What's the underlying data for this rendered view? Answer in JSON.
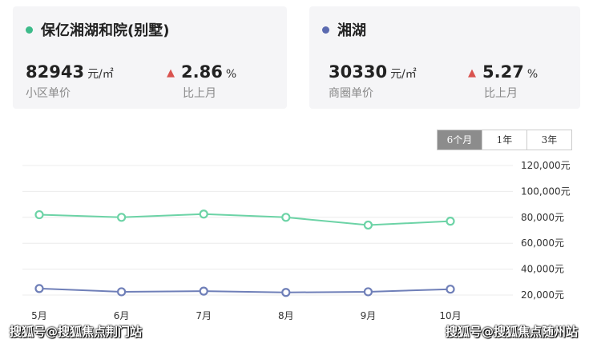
{
  "cards": [
    {
      "title": "保亿湘湖和院(别墅)",
      "dot_color": "#3dbb8a",
      "price": "82943",
      "unit": "元/㎡",
      "price_label": "小区单价",
      "change": "2.86",
      "change_unit": "%",
      "change_label": "比上月"
    },
    {
      "title": "湘湖",
      "dot_color": "#5b6ab0",
      "price": "30330",
      "unit": "元/㎡",
      "price_label": "商圈单价",
      "change": "5.27",
      "change_unit": "%",
      "change_label": "比上月"
    }
  ],
  "range_buttons": [
    {
      "label": "6个月",
      "active": true
    },
    {
      "label": "1年",
      "active": false
    },
    {
      "label": "3年",
      "active": false
    }
  ],
  "chart_data": {
    "type": "line",
    "categories": [
      "5月",
      "6月",
      "7月",
      "8月",
      "9月",
      "10月"
    ],
    "y_ticks": [
      "120,000元",
      "100,000元",
      "80,000元",
      "60,000元",
      "40,000元",
      "20,000元"
    ],
    "y_tick_values": [
      120000,
      100000,
      80000,
      60000,
      40000,
      20000
    ],
    "ylim": [
      20000,
      120000
    ],
    "grid": true,
    "series": [
      {
        "name": "保亿湘湖和院(别墅)",
        "color": "#6cd3a6",
        "values": [
          82000,
          80000,
          82500,
          80000,
          74000,
          77000
        ]
      },
      {
        "name": "湘湖",
        "color": "#6f7fb8",
        "values": [
          25000,
          22500,
          23000,
          22000,
          22500,
          24500
        ]
      }
    ]
  },
  "watermarks": [
    "搜狐号@搜狐焦点荆门站",
    "搜狐号@搜狐焦点随州站"
  ]
}
